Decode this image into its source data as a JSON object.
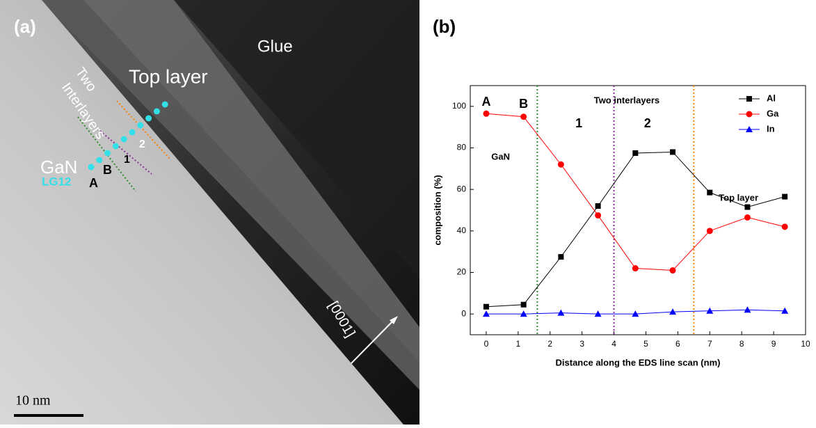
{
  "panel_a": {
    "label": "(a)",
    "texts": {
      "glue": "Glue",
      "top_layer": "Top layer",
      "two": "Two",
      "interlayers": "Interlayers",
      "gan": "GaN",
      "lg12": "LG12",
      "a": "A",
      "b": "B",
      "one": "1",
      "two_num": "2",
      "direction": "[0001]",
      "scale": "10 nm"
    }
  },
  "chart_data": {
    "type": "line",
    "panel_label": "(b)",
    "x_label": "Distance along the EDS line scan (nm)",
    "y_label": "composition (%)",
    "x": [
      0,
      1.17,
      2.34,
      3.5,
      4.67,
      5.84,
      7.0,
      8.18,
      9.35
    ],
    "series": [
      {
        "name": "Al",
        "color": "#000000",
        "marker": "square",
        "values": [
          3.5,
          4.5,
          27.5,
          52,
          77.5,
          78,
          58.5,
          51.5,
          56.5
        ]
      },
      {
        "name": "Ga",
        "color": "#ff0000",
        "marker": "circle",
        "values": [
          96.5,
          95,
          72,
          47.5,
          22,
          21,
          40,
          46.5,
          42
        ]
      },
      {
        "name": "In",
        "color": "#0000ff",
        "marker": "triangle",
        "values": [
          0,
          0,
          0.5,
          0,
          0,
          1,
          1.5,
          2,
          1.5
        ]
      }
    ],
    "reference_lines": [
      {
        "x": 1.6,
        "color": "#2e8b2e"
      },
      {
        "x": 4.0,
        "color": "#8b2e9b"
      },
      {
        "x": 6.5,
        "color": "#ff8000"
      }
    ],
    "annotations": [
      "A",
      "B",
      "Two interlayers",
      "1",
      "2",
      "GaN",
      "Top layer"
    ],
    "xlim": [
      -0.5,
      10
    ],
    "xticks": [
      0,
      1,
      2,
      3,
      4,
      5,
      6,
      7,
      8,
      9,
      10
    ],
    "ylim": [
      -10,
      110
    ],
    "yticks": [
      0,
      20,
      40,
      60,
      80,
      100
    ],
    "legend": "upper right"
  }
}
